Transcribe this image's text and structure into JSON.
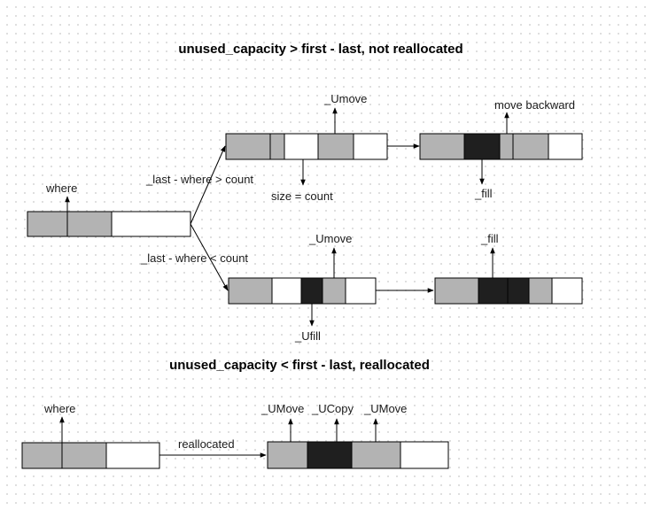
{
  "titles": {
    "not_reallocated": "unused_capacity > first - last, not reallocated",
    "reallocated": "unused_capacity < first - last, reallocated"
  },
  "labels": {
    "where_top": "where",
    "branch_gt": "_last - where > count",
    "branch_lt": "_last - where < count",
    "umove_top": "_Umove",
    "size_count": "size = count",
    "move_backward": "move backward",
    "fill_top": "_fill",
    "umove_mid": "_Umove",
    "ufill": "_Ufill",
    "fill_mid": "_fill",
    "where_bottom": "where",
    "reallocated_arrow": "reallocated",
    "umove_b1": "_UMove",
    "ucopy": "_UCopy",
    "umove_b2": "_UMove"
  },
  "colors": {
    "old_element": "#b3b3b3",
    "new_element": "#1f1f1f",
    "empty": "#ffffff",
    "stroke": "#000000"
  }
}
